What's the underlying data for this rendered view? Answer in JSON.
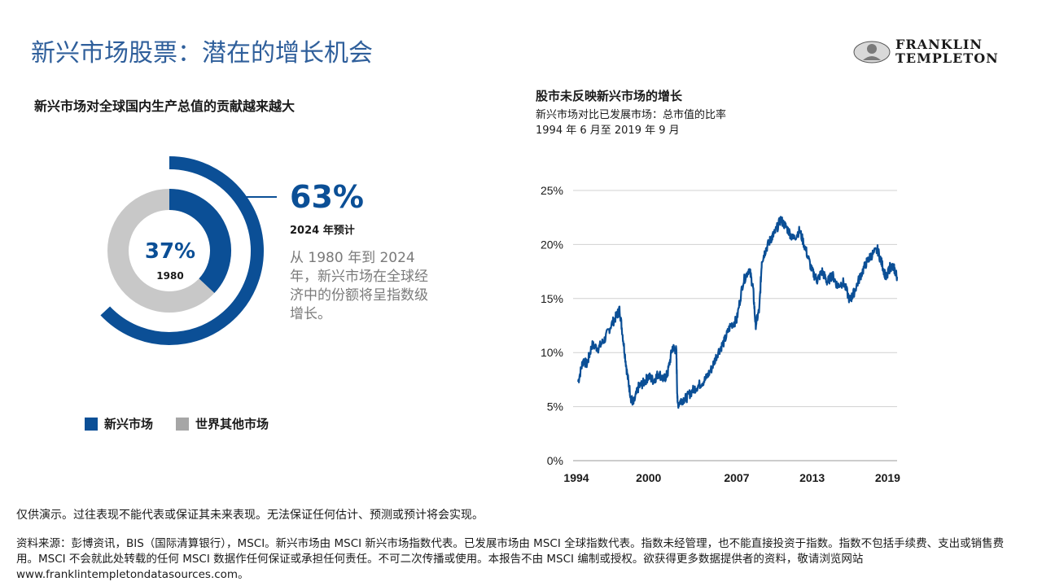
{
  "page_title": "新兴市场股票：潜在的增长机会",
  "brand": {
    "line1": "FRANKLIN",
    "line2": "TEMPLETON",
    "logo_icon": "portrait-medallion-icon"
  },
  "colors": {
    "accent_blue": "#0b4f96",
    "title_blue": "#2f5f9b",
    "gray": "#c8c8c8"
  },
  "donut": {
    "title": "新兴市场对全球国内生产总值的贡献越来越大",
    "outer": {
      "percent": "63%",
      "label": "2024 年预计",
      "value": 63
    },
    "inner": {
      "percent": "37%",
      "label": "1980",
      "value": 37
    },
    "description": "从 1980 年到 2024 年，新兴市场在全球经济中的份额将呈指数级增长。",
    "legend": [
      {
        "label": "新兴市场",
        "color": "#0b4f96"
      },
      {
        "label": "世界其他市场",
        "color": "#a6a6a6"
      }
    ]
  },
  "line_chart": {
    "title": "股市未反映新兴市场的增长",
    "subtitle": "新兴市场对比已发展市场：总市值的比率",
    "date_range": "1994 年 6 月至 2019 年 9 月"
  },
  "chart_data": {
    "type": "line",
    "title": "股市未反映新兴市场的增长",
    "x_tick_labels": [
      "1994",
      "2000",
      "2007",
      "2013",
      "2019"
    ],
    "x_ticks": [
      1994,
      2000,
      2007,
      2013,
      2019
    ],
    "y_tick_labels": [
      "0%",
      "5%",
      "10%",
      "15%",
      "20%",
      "25%"
    ],
    "ylim": [
      0,
      25
    ],
    "xlim": [
      1994,
      2019.75
    ],
    "grid": true,
    "series": [
      {
        "color": "#0b4f96",
        "x": [
          1994.4,
          1994.8,
          1995.1,
          1995.5,
          1996.0,
          1996.5,
          1997.0,
          1997.5,
          1997.7,
          1998.0,
          1998.3,
          1998.6,
          1998.8,
          1999.2,
          1999.6,
          2000.0,
          2000.4,
          2000.8,
          2001.2,
          2001.5,
          2001.9,
          2002.2,
          2002.3,
          2002.6,
          2003.0,
          2003.5,
          2004.0,
          2004.5,
          2005.0,
          2005.5,
          2006.0,
          2006.5,
          2007.0,
          2007.5,
          2008.0,
          2008.3,
          2008.5,
          2008.8,
          2009.0,
          2009.3,
          2009.7,
          2010.0,
          2010.5,
          2011.0,
          2011.5,
          2012.0,
          2012.5,
          2013.0,
          2013.4,
          2013.8,
          2014.2,
          2014.6,
          2015.0,
          2015.5,
          2016.0,
          2016.3,
          2016.8,
          2017.3,
          2017.7,
          2018.2,
          2018.6,
          2018.9,
          2019.2,
          2019.5,
          2019.75
        ],
        "y": [
          7.3,
          9.3,
          8.9,
          10.7,
          10.4,
          11.2,
          12.5,
          13.5,
          14.0,
          11.0,
          8.0,
          5.8,
          5.3,
          6.8,
          7.2,
          7.8,
          7.4,
          8.1,
          7.5,
          8.0,
          10.5,
          10.2,
          5.2,
          5.6,
          5.8,
          6.5,
          7.0,
          7.5,
          8.5,
          10.0,
          11.0,
          12.5,
          13.0,
          16.5,
          17.8,
          16.0,
          12.5,
          14.0,
          18.5,
          19.5,
          20.5,
          21.0,
          22.3,
          21.5,
          20.5,
          21.3,
          19.5,
          17.5,
          16.7,
          17.5,
          16.5,
          17.2,
          16.2,
          16.5,
          14.8,
          15.5,
          17.0,
          18.3,
          19.0,
          19.5,
          18.0,
          16.8,
          18.0,
          17.8,
          17.0
        ]
      }
    ]
  },
  "footer": {
    "disclaimer": "仅供演示。过往表现不能代表或保证其未来表现。无法保证任何估计、预测或预计将会实现。",
    "source": "资料来源：彭博资讯，BIS（国际清算银行），MSCI。新兴市场由 MSCI 新兴市场指数代表。已发展市场由 MSCI 全球指数代表。指数未经管理，也不能直接投资于指数。指数不包括手续费、支出或销售费用。MSCI 不会就此处转载的任何 MSCI 数据作任何保证或承担任何责任。不可二次传播或使用。本报告不由 MSCI 编制或授权。欲获得更多数据提供者的资料，敬请浏览网站www.franklintempletondatasources.com。"
  }
}
